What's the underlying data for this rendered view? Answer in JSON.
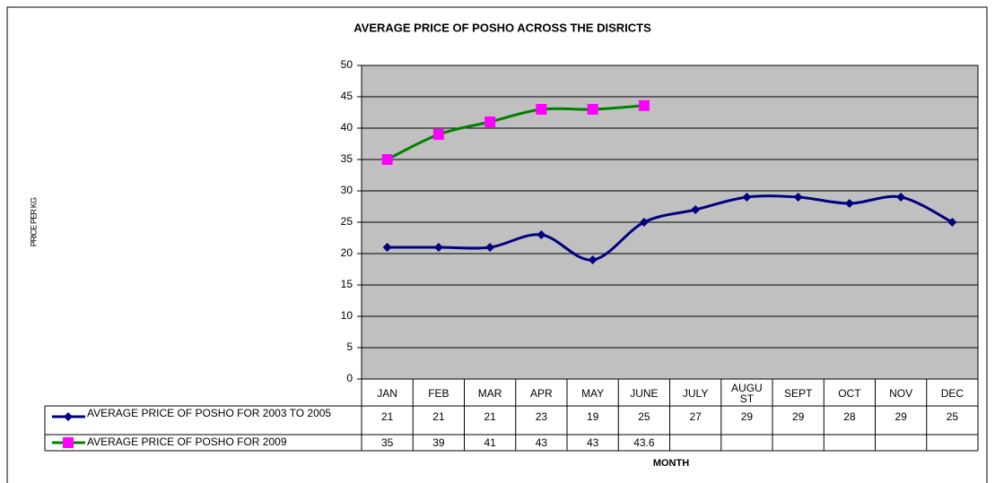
{
  "chart_data": {
    "type": "line",
    "title": "AVERAGE PRICE OF POSHO ACROSS THE DISRICTS",
    "y_label": "PRICE PER KG",
    "x_label": "MONTH",
    "categories": [
      "JAN",
      "FEB",
      "MAR",
      "APR",
      "MAY",
      "JUNE",
      "JULY",
      "AUGUST",
      "SEPT",
      "OCT",
      "NOV",
      "DEC"
    ],
    "series": [
      {
        "name": "AVERAGE PRICE OF POSHO FOR 2003 TO 2005",
        "color": "#000080",
        "marker": "diamond",
        "values": [
          21,
          21,
          21,
          23,
          19,
          25,
          27,
          29,
          29,
          28,
          29,
          25
        ]
      },
      {
        "name": "AVERAGE PRICE OF POSHO FOR 2009",
        "color": "#008000",
        "marker_color": "#ff00ff",
        "marker": "square",
        "values": [
          35,
          39,
          41,
          43,
          43,
          43.6,
          null,
          null,
          null,
          null,
          null,
          null
        ]
      }
    ],
    "ylim": [
      0,
      50
    ],
    "yticks": [
      0,
      5,
      10,
      15,
      20,
      25,
      30,
      35,
      40,
      45,
      50
    ],
    "grid": true,
    "smooth": true,
    "data_table": true
  }
}
